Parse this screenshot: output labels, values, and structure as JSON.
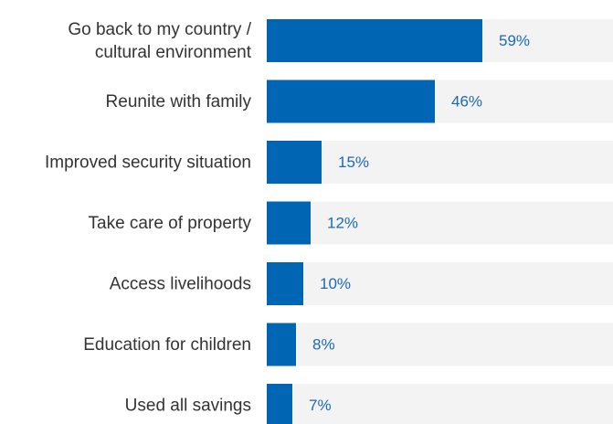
{
  "chart_data": {
    "type": "bar",
    "orientation": "horizontal",
    "categories": [
      [
        "Go back to my country /",
        "cultural environment"
      ],
      [
        "Reunite with family"
      ],
      [
        "Improved security situation"
      ],
      [
        "Take care of property"
      ],
      [
        "Access livelihoods"
      ],
      [
        "Education for children"
      ],
      [
        "Used all savings"
      ]
    ],
    "values": [
      59,
      46,
      15,
      12,
      10,
      8,
      7
    ],
    "value_labels": [
      "59%",
      "46%",
      "15%",
      "12%",
      "10%",
      "8%",
      "7%"
    ],
    "xlim": [
      0,
      100
    ],
    "grid": false,
    "legend": "none",
    "colors": {
      "bar": "#0066b3",
      "track": "#f3f3f3",
      "value_text": "#1a69b8",
      "label_text": "#333333"
    }
  }
}
